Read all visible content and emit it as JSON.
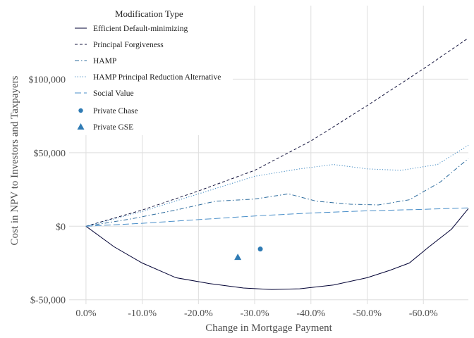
{
  "chart_data": {
    "type": "line",
    "xlabel": "Change in Mortgage Payment",
    "ylabel": "Cost in NPV to Investors and Taxpayers",
    "x_ticks": [
      0,
      -10,
      -20,
      -30,
      -40,
      -50,
      -60
    ],
    "x_tick_labels": [
      "0.0%",
      "-10.0%",
      "-20.0%",
      "-30.0%",
      "-40.0%",
      "-50.0%",
      "-60.0%"
    ],
    "y_ticks": [
      -50000,
      0,
      50000,
      100000
    ],
    "y_tick_labels": [
      "$-50,000",
      "$0",
      "$50,000",
      "$100,000"
    ],
    "xlim": [
      3,
      -68
    ],
    "ylim": [
      -53000,
      150000
    ],
    "grid": true,
    "legend": {
      "title": "Modification Type",
      "position": "top-left"
    },
    "series": [
      {
        "name": "Efficient Default-minimizing",
        "style": "solid",
        "color": "#000033",
        "x": [
          0,
          -5,
          -10,
          -16,
          -22,
          -28,
          -33,
          -38,
          -44,
          -50,
          -54,
          -57.5,
          -61,
          -65,
          -68
        ],
        "y": [
          0,
          -14000,
          -25000,
          -35000,
          -39000,
          -42000,
          -43000,
          -42500,
          -40000,
          -35000,
          -30000,
          -25000,
          -14000,
          -2000,
          12000
        ]
      },
      {
        "name": "Principal Forgiveness",
        "style": "dashed",
        "color": "#14143d",
        "x": [
          0,
          -10,
          -20,
          -30,
          -40,
          -50,
          -60,
          -68
        ],
        "y": [
          0,
          11000,
          24000,
          38000,
          58000,
          82000,
          107000,
          128000
        ]
      },
      {
        "name": "HAMP",
        "style": "dashdot",
        "color": "#2d6c9e",
        "x": [
          0,
          -8,
          -16,
          -23,
          -30,
          -36,
          -41,
          -47,
          -52,
          -57.5,
          -63,
          -68
        ],
        "y": [
          0,
          5000,
          11000,
          17000,
          18500,
          22000,
          17000,
          15000,
          14500,
          18000,
          30000,
          46000
        ]
      },
      {
        "name": "HAMP Principal Reduction Alternative",
        "style": "dotted",
        "color": "#3a86c0",
        "x": [
          0,
          -10,
          -20,
          -25,
          -30,
          -38,
          -44,
          -50,
          -56,
          -62.5,
          -68
        ],
        "y": [
          0,
          10000,
          22000,
          28000,
          34000,
          39000,
          42000,
          39000,
          38000,
          42000,
          55000
        ]
      },
      {
        "name": "Social Value",
        "style": "longdash",
        "color": "#4a8fc9",
        "x": [
          0,
          -10,
          -20,
          -30,
          -40,
          -50,
          -60,
          -68
        ],
        "y": [
          0,
          2000,
          4500,
          7000,
          9000,
          10500,
          11500,
          12500
        ]
      }
    ],
    "points": [
      {
        "name": "Private Chase",
        "shape": "circle",
        "color": "#2f7bb4",
        "x": -31,
        "y": -15500
      },
      {
        "name": "Private GSE",
        "shape": "triangle",
        "color": "#2f7bb4",
        "x": -27,
        "y": -21000
      }
    ]
  }
}
